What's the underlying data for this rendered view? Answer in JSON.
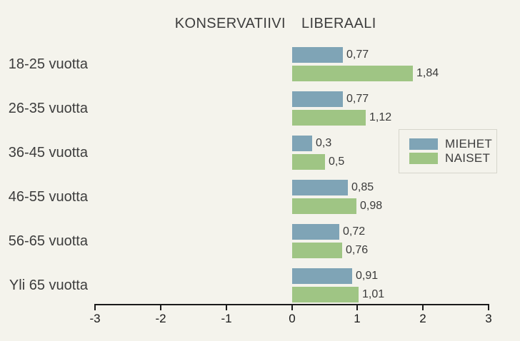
{
  "title": {
    "left": "KONSERVATIIVI",
    "right": "LIBERAALI"
  },
  "legend": {
    "items": [
      {
        "label": "MIEHET",
        "color": "#7fa4b6"
      },
      {
        "label": "NAISET",
        "color": "#9fc584"
      }
    ]
  },
  "axis": {
    "tick_labels": [
      "-3",
      "-2",
      "-1",
      "0",
      "1",
      "2",
      "3"
    ]
  },
  "chart_data": {
    "type": "bar",
    "orientation": "horizontal",
    "title": "KONSERVATIIVI    LIBERAALI",
    "categories": [
      "18-25 vuotta",
      "26-35 vuotta",
      "36-45 vuotta",
      "46-55 vuotta",
      "56-65 vuotta",
      "Yli 65 vuotta"
    ],
    "series": [
      {
        "name": "MIEHET",
        "color": "#7fa4b6",
        "values": [
          0.77,
          0.77,
          0.3,
          0.85,
          0.72,
          0.91
        ],
        "value_labels": [
          "0,77",
          "0,77",
          "0,3",
          "0,85",
          "0,72",
          "0,91"
        ]
      },
      {
        "name": "NAISET",
        "color": "#9fc584",
        "values": [
          1.84,
          1.12,
          0.5,
          0.98,
          0.76,
          1.01
        ],
        "value_labels": [
          "1,84",
          "1,12",
          "0,5",
          "0,98",
          "0,76",
          "1,01"
        ]
      }
    ],
    "xlim": [
      -3,
      3
    ],
    "x_ticks": [
      -3,
      -2,
      -1,
      0,
      1,
      2,
      3
    ],
    "grid": false,
    "legend_position": "middle-right"
  },
  "colors": {
    "background": "#f4f3ec",
    "miehet": "#7fa4b6",
    "naiset": "#9fc584",
    "axis": "#1a1a1a",
    "text": "#3d3d3d",
    "legend_border": "#d6d6cc"
  }
}
